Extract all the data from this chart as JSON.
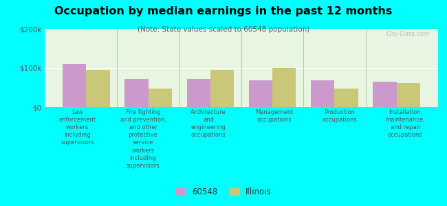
{
  "title": "Occupation by median earnings in the past 12 months",
  "subtitle": "(Note: State values scaled to 60548 population)",
  "background_color": "#00FFFF",
  "plot_bg_color": "#e8f5e0",
  "categories": [
    "Law\nenforcement\nworkers\nincluding\nsupervisors",
    "Fire fighting\nand prevention,\nand other\nprotective\nservice\nworkers\nincluding\nsupervisors",
    "Architecture\nand\nengineering\noccupations",
    "Management\noccupations",
    "Production\noccupations",
    "Installation,\nmaintenance,\nand repair\noccupations"
  ],
  "values_60548": [
    110000,
    72000,
    72000,
    68000,
    68000,
    65000
  ],
  "values_illinois": [
    95000,
    48000,
    95000,
    100000,
    47000,
    62000
  ],
  "color_60548": "#cc99cc",
  "color_illinois": "#c8c878",
  "ylim": [
    0,
    200000
  ],
  "yticks": [
    0,
    100000,
    200000
  ],
  "ytick_labels": [
    "$0",
    "$100k",
    "$200k"
  ],
  "legend_labels": [
    "60548",
    "Illinois"
  ],
  "bar_width": 0.38,
  "watermark": "City-Data.com"
}
